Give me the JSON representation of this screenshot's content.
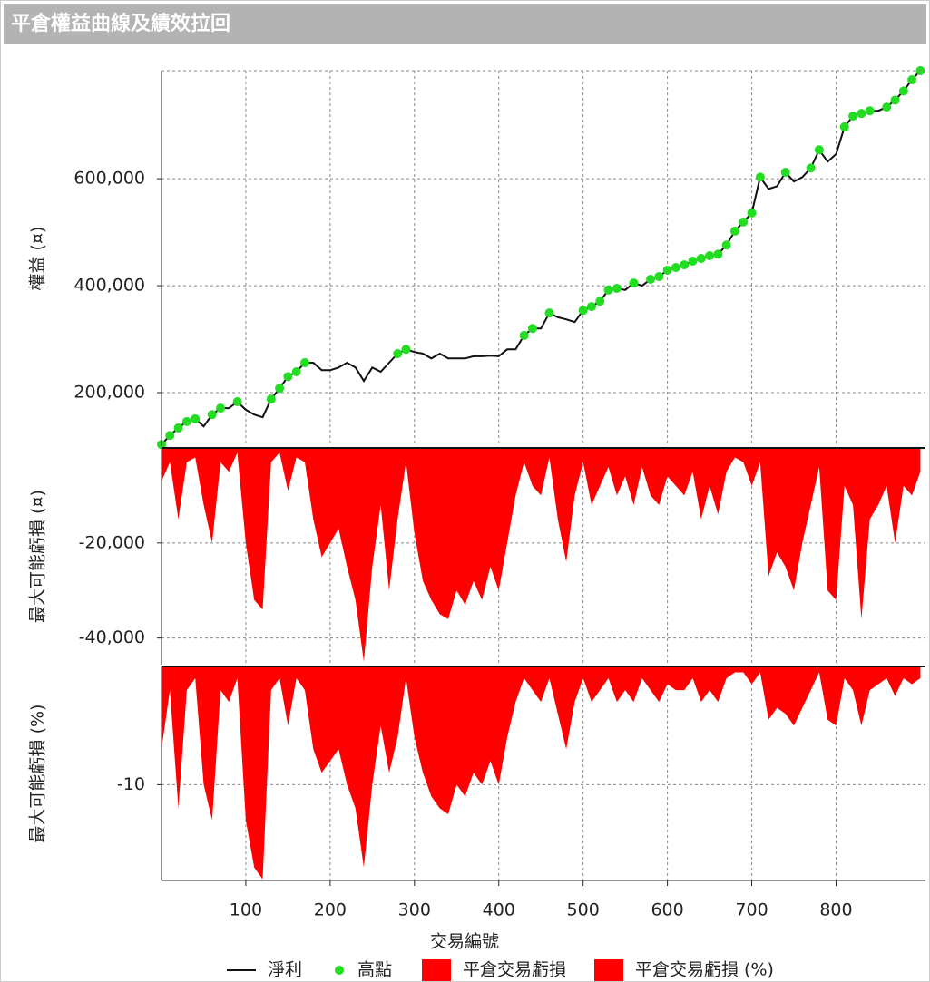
{
  "header": {
    "title": "平倉權益曲線及績效拉回"
  },
  "chart_data": [
    {
      "type": "line",
      "ylabel": "權益 (¤)",
      "x": [
        0,
        10,
        20,
        30,
        40,
        50,
        60,
        70,
        80,
        90,
        100,
        110,
        120,
        130,
        140,
        150,
        160,
        170,
        180,
        190,
        200,
        210,
        220,
        230,
        240,
        250,
        260,
        270,
        280,
        290,
        300,
        310,
        320,
        330,
        340,
        350,
        360,
        370,
        380,
        390,
        400,
        410,
        420,
        430,
        440,
        450,
        460,
        470,
        480,
        490,
        500,
        510,
        520,
        530,
        540,
        550,
        560,
        570,
        580,
        590,
        600,
        610,
        620,
        630,
        640,
        650,
        660,
        670,
        680,
        690,
        700,
        710,
        720,
        730,
        740,
        750,
        760,
        770,
        780,
        790,
        800,
        810,
        820,
        830,
        840,
        850,
        860,
        870,
        880,
        890,
        900
      ],
      "ylim": [
        100000,
        802000
      ],
      "yticks": [
        {
          "value": 200000,
          "label": "200,000"
        },
        {
          "value": 400000,
          "label": "400,000"
        },
        {
          "value": 600000,
          "label": "600,000"
        }
      ],
      "grid": true,
      "series": [
        {
          "name": "淨利",
          "type": "line",
          "color": "#111111",
          "values": [
            103000,
            120000,
            134000,
            146000,
            151000,
            137000,
            159000,
            171000,
            171000,
            183000,
            168000,
            159000,
            154000,
            188000,
            208000,
            230000,
            239000,
            256000,
            256000,
            242000,
            242000,
            247000,
            256000,
            247000,
            222000,
            247000,
            239000,
            256000,
            273000,
            281000,
            276000,
            273000,
            264000,
            273000,
            264000,
            264000,
            264000,
            268000,
            268000,
            269000,
            268000,
            281000,
            281000,
            307000,
            320000,
            320000,
            349000,
            341000,
            337000,
            332000,
            354000,
            361000,
            371000,
            392000,
            395000,
            392000,
            405000,
            400000,
            412000,
            417000,
            429000,
            434000,
            439000,
            446000,
            451000,
            456000,
            459000,
            476000,
            502000,
            519000,
            536000,
            603000,
            581000,
            586000,
            612000,
            595000,
            603000,
            620000,
            654000,
            632000,
            646000,
            697000,
            717000,
            722000,
            727000,
            727000,
            734000,
            747000,
            764000,
            785000,
            802000
          ]
        },
        {
          "name": "高點",
          "type": "scatter",
          "color": "#22dd22",
          "x": [
            0,
            10,
            20,
            30,
            40,
            60,
            70,
            90,
            130,
            140,
            150,
            160,
            170,
            280,
            290,
            430,
            440,
            460,
            500,
            510,
            520,
            530,
            540,
            560,
            580,
            590,
            600,
            610,
            620,
            630,
            640,
            650,
            660,
            670,
            680,
            690,
            700,
            710,
            740,
            770,
            780,
            810,
            820,
            830,
            840,
            860,
            870,
            880,
            890,
            900
          ],
          "values": [
            103000,
            120000,
            134000,
            146000,
            151000,
            159000,
            171000,
            183000,
            188000,
            208000,
            230000,
            239000,
            256000,
            273000,
            281000,
            307000,
            320000,
            349000,
            354000,
            361000,
            371000,
            392000,
            395000,
            405000,
            412000,
            417000,
            429000,
            434000,
            439000,
            446000,
            451000,
            456000,
            459000,
            476000,
            502000,
            519000,
            536000,
            603000,
            612000,
            620000,
            654000,
            697000,
            717000,
            722000,
            727000,
            734000,
            747000,
            764000,
            785000,
            802000
          ]
        }
      ]
    },
    {
      "type": "area",
      "ylabel": "最大可能虧損 (¤)",
      "x": [
        0,
        10,
        20,
        30,
        40,
        50,
        60,
        70,
        80,
        90,
        100,
        110,
        120,
        130,
        140,
        150,
        160,
        170,
        180,
        190,
        200,
        210,
        220,
        230,
        240,
        250,
        260,
        270,
        280,
        290,
        300,
        310,
        320,
        330,
        340,
        350,
        360,
        370,
        380,
        390,
        400,
        410,
        420,
        430,
        440,
        450,
        460,
        470,
        480,
        490,
        500,
        510,
        520,
        530,
        540,
        550,
        560,
        570,
        580,
        590,
        600,
        610,
        620,
        630,
        640,
        650,
        660,
        670,
        680,
        690,
        700,
        710,
        720,
        730,
        740,
        750,
        760,
        770,
        780,
        790,
        800,
        810,
        820,
        830,
        840,
        850,
        860,
        870,
        880,
        890,
        900
      ],
      "ylim": [
        -45600,
        0
      ],
      "yticks": [
        {
          "value": -20000,
          "label": "-20,000"
        },
        {
          "value": -40000,
          "label": "-40,000"
        }
      ],
      "grid": true,
      "series": [
        {
          "name": "平倉交易虧損",
          "type": "area",
          "color": "#ff0000",
          "values": [
            -7000,
            -3000,
            -15000,
            -3000,
            -2000,
            -12000,
            -20000,
            -3000,
            -5000,
            -1000,
            -20000,
            -32000,
            -34000,
            -3000,
            -1000,
            -9000,
            -2000,
            -3000,
            -15000,
            -23000,
            -20000,
            -17000,
            -25000,
            -32000,
            -45000,
            -25000,
            -12000,
            -30000,
            -15000,
            -3000,
            -18000,
            -28000,
            -32000,
            -35000,
            -36000,
            -30000,
            -33000,
            -28000,
            -32000,
            -25000,
            -30000,
            -20000,
            -10000,
            -3000,
            -8000,
            -10000,
            -2000,
            -15000,
            -24000,
            -10000,
            -3000,
            -12000,
            -8000,
            -4000,
            -10000,
            -6000,
            -12000,
            -4000,
            -10000,
            -12000,
            -6000,
            -8000,
            -10000,
            -5000,
            -15000,
            -8000,
            -14000,
            -5000,
            -2000,
            -3000,
            -8000,
            -3000,
            -27000,
            -22000,
            -25000,
            -30000,
            -20000,
            -12000,
            -4000,
            -30000,
            -32000,
            -8000,
            -12000,
            -36000,
            -15000,
            -12000,
            -8000,
            -20000,
            -8000,
            -10000,
            -5000
          ]
        }
      ]
    },
    {
      "type": "area",
      "ylabel": "最大可能虧損 (%)",
      "xlabel": "交易編號",
      "x": [
        0,
        10,
        20,
        30,
        40,
        50,
        60,
        70,
        80,
        90,
        100,
        110,
        120,
        130,
        140,
        150,
        160,
        170,
        180,
        190,
        200,
        210,
        220,
        230,
        240,
        250,
        260,
        270,
        280,
        290,
        300,
        310,
        320,
        330,
        340,
        350,
        360,
        370,
        380,
        390,
        400,
        410,
        420,
        430,
        440,
        450,
        460,
        470,
        480,
        490,
        500,
        510,
        520,
        530,
        540,
        550,
        560,
        570,
        580,
        590,
        600,
        610,
        620,
        630,
        640,
        650,
        660,
        670,
        680,
        690,
        700,
        710,
        720,
        730,
        740,
        750,
        760,
        770,
        780,
        790,
        800,
        810,
        820,
        830,
        840,
        850,
        860,
        870,
        880,
        890,
        900
      ],
      "xlim": [
        0,
        906
      ],
      "xticks": [
        100,
        200,
        300,
        400,
        500,
        600,
        700,
        800
      ],
      "ylim": [
        -18.1,
        0
      ],
      "yticks": [
        -10
      ],
      "grid": true,
      "series": [
        {
          "name": "平倉交易虧損 (%)",
          "type": "area",
          "color": "#ff0000",
          "values": [
            -7,
            -2,
            -12,
            -2,
            -1,
            -10,
            -13,
            -2,
            -3,
            -1,
            -13,
            -17,
            -18,
            -2,
            -1,
            -5,
            -1,
            -2,
            -7,
            -9,
            -8,
            -7,
            -10,
            -12,
            -17,
            -10,
            -5,
            -9,
            -6,
            -1,
            -6,
            -9,
            -11,
            -12,
            -12.5,
            -10,
            -11,
            -9,
            -10,
            -8,
            -10,
            -6,
            -3,
            -1,
            -2,
            -3,
            -1,
            -4,
            -7,
            -3,
            -1,
            -3,
            -2,
            -1,
            -3,
            -2,
            -3,
            -1,
            -2,
            -3,
            -1.5,
            -2,
            -2,
            -1,
            -3,
            -2,
            -3,
            -1,
            -0.5,
            -0.5,
            -1.5,
            -0.5,
            -4.5,
            -3.5,
            -4,
            -5,
            -3.5,
            -2,
            -0.5,
            -4.5,
            -5,
            -1,
            -2,
            -5,
            -2,
            -1.5,
            -1,
            -2.5,
            -1,
            -1.5,
            -1
          ]
        }
      ]
    }
  ]
}
